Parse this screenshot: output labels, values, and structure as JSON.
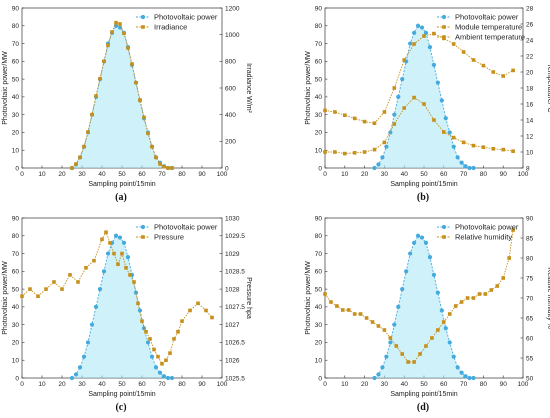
{
  "colors": {
    "pv": "#44aadd",
    "pv_band": "#a8e6f4",
    "other": "#c7901a",
    "axis": "#333333"
  },
  "chart_data": [
    {
      "type": "scatter",
      "panel_label": "(a)",
      "xlabel": "Sampling point/15min",
      "ylabel_left": "Photovoltaic power/MW",
      "ylabel_right": "Irradiance W/m²",
      "xlim": [
        0,
        100
      ],
      "x_ticks": [
        "0",
        "10",
        "20",
        "30",
        "40",
        "50",
        "60",
        "70",
        "80",
        "90",
        "100"
      ],
      "ylim_left": [
        0,
        90
      ],
      "left_ticks": [
        "0",
        "10",
        "20",
        "30",
        "40",
        "50",
        "60",
        "70",
        "80",
        "90"
      ],
      "ylim_right": [
        0,
        1200
      ],
      "right_ticks": [
        "0",
        "200",
        "400",
        "600",
        "800",
        "1000",
        "1200"
      ],
      "legend": [
        "Photovoltaic power",
        "Irradiance"
      ],
      "series": [
        {
          "name": "Photovoltaic power",
          "axis": "left",
          "x": [
            25,
            27,
            29,
            31,
            33,
            35,
            37,
            39,
            41,
            43,
            45,
            47,
            49,
            51,
            53,
            55,
            57,
            59,
            61,
            63,
            65,
            67,
            69,
            71,
            73,
            75
          ],
          "y": [
            0,
            2,
            6,
            12,
            20,
            30,
            40,
            50,
            60,
            70,
            76,
            80,
            79,
            76,
            68,
            58,
            48,
            38,
            28,
            20,
            12,
            6,
            3,
            1,
            0,
            0
          ]
        },
        {
          "name": "Irradiance",
          "axis": "right",
          "x": [
            25,
            27,
            29,
            31,
            33,
            35,
            37,
            39,
            41,
            43,
            45,
            47,
            49,
            51,
            53,
            55,
            57,
            59,
            61,
            63,
            65,
            67,
            69,
            71,
            73,
            75
          ],
          "y": [
            0,
            30,
            80,
            160,
            270,
            400,
            540,
            670,
            800,
            920,
            1020,
            1090,
            1080,
            1010,
            900,
            780,
            640,
            510,
            380,
            260,
            160,
            80,
            30,
            10,
            0,
            0
          ]
        }
      ]
    },
    {
      "type": "line",
      "panel_label": "(b)",
      "xlabel": "Sampling point/15min",
      "ylabel_left": "Photovoltaic power/MW",
      "ylabel_right": "Temperature/°C",
      "xlim": [
        0,
        100
      ],
      "x_ticks": [
        "0",
        "10",
        "20",
        "30",
        "40",
        "50",
        "60",
        "70",
        "80",
        "90",
        "100"
      ],
      "ylim_left": [
        0,
        90
      ],
      "left_ticks": [
        "0",
        "10",
        "20",
        "30",
        "40",
        "50",
        "60",
        "70",
        "80",
        "90"
      ],
      "ylim_right": [
        8,
        28
      ],
      "right_ticks": [
        "8",
        "10",
        "12",
        "14",
        "16",
        "18",
        "20",
        "22",
        "24",
        "26",
        "28"
      ],
      "legend": [
        "Photovoltaic power",
        "Module temperature",
        "Ambient temperature"
      ],
      "series": [
        {
          "name": "Photovoltaic power",
          "axis": "left",
          "x": [
            25,
            27,
            29,
            31,
            33,
            35,
            37,
            39,
            41,
            43,
            45,
            47,
            49,
            51,
            53,
            55,
            57,
            59,
            61,
            63,
            65,
            67,
            69,
            71,
            73,
            75
          ],
          "y": [
            0,
            2,
            6,
            12,
            20,
            30,
            40,
            50,
            60,
            70,
            76,
            80,
            79,
            76,
            68,
            58,
            48,
            38,
            28,
            20,
            12,
            6,
            3,
            1,
            0,
            0
          ]
        },
        {
          "name": "Module temperature",
          "axis": "right",
          "x": [
            0,
            5,
            10,
            15,
            20,
            25,
            30,
            35,
            40,
            45,
            50,
            55,
            60,
            65,
            70,
            75,
            80,
            85,
            90,
            95
          ],
          "y": [
            15.2,
            15,
            14.6,
            14.2,
            13.8,
            13.6,
            15,
            18,
            21.5,
            23.5,
            24.5,
            24.8,
            24.2,
            23.5,
            22.5,
            21.5,
            20.8,
            20,
            19.5,
            20.2
          ]
        },
        {
          "name": "Ambient temperature",
          "axis": "right",
          "x": [
            0,
            5,
            10,
            15,
            20,
            25,
            30,
            35,
            40,
            45,
            50,
            55,
            60,
            65,
            70,
            75,
            80,
            85,
            90,
            95
          ],
          "y": [
            10,
            10,
            9.8,
            9.9,
            10,
            10.3,
            11.2,
            13.5,
            15.5,
            16.8,
            16,
            14,
            12.5,
            11.8,
            11.2,
            10.8,
            10.6,
            10.4,
            10.3,
            10.1
          ]
        }
      ]
    },
    {
      "type": "line",
      "panel_label": "(c)",
      "xlabel": "Sampling point/15min",
      "ylabel_left": "Photovoltaic power/MW",
      "ylabel_right": "Pressure hpa",
      "xlim": [
        0,
        100
      ],
      "x_ticks": [
        "0",
        "10",
        "20",
        "30",
        "40",
        "50",
        "60",
        "70",
        "80",
        "90",
        "100"
      ],
      "ylim_left": [
        0,
        90
      ],
      "left_ticks": [
        "0",
        "10",
        "20",
        "30",
        "40",
        "50",
        "60",
        "70",
        "80",
        "90"
      ],
      "ylim_right": [
        1025.5,
        1030
      ],
      "right_ticks": [
        "1025.5",
        "1026",
        "1026.5",
        "1027",
        "1027.5",
        "1028",
        "1028.5",
        "1029",
        "1029.5",
        "1030"
      ],
      "legend": [
        "Photovoltaic power",
        "Pressure"
      ],
      "series": [
        {
          "name": "Photovoltaic power",
          "axis": "left",
          "x": [
            25,
            27,
            29,
            31,
            33,
            35,
            37,
            39,
            41,
            43,
            45,
            47,
            49,
            51,
            53,
            55,
            57,
            59,
            61,
            63,
            65,
            67,
            69,
            71,
            73,
            75
          ],
          "y": [
            0,
            2,
            6,
            12,
            20,
            30,
            40,
            50,
            60,
            70,
            76,
            80,
            79,
            76,
            68,
            58,
            48,
            38,
            28,
            20,
            12,
            6,
            3,
            1,
            0,
            0
          ]
        },
        {
          "name": "Pressure",
          "axis": "right",
          "x": [
            0,
            4,
            8,
            12,
            16,
            20,
            24,
            28,
            32,
            36,
            40,
            42,
            44,
            46,
            48,
            50,
            52,
            54,
            56,
            58,
            60,
            62,
            64,
            66,
            68,
            70,
            72,
            74,
            76,
            78,
            80,
            84,
            88,
            92,
            95
          ],
          "y": [
            1027.8,
            1028,
            1027.8,
            1028,
            1028.2,
            1028,
            1028.4,
            1028.2,
            1028.6,
            1028.8,
            1029.4,
            1029.6,
            1029.3,
            1029,
            1028.7,
            1029,
            1028.6,
            1028.4,
            1028.2,
            1027.6,
            1027.1,
            1026.8,
            1026.6,
            1026.3,
            1026.1,
            1025.9,
            1026,
            1026.2,
            1026.6,
            1026.8,
            1027.1,
            1027.4,
            1027.6,
            1027.4,
            1027.2
          ]
        }
      ]
    },
    {
      "type": "line",
      "panel_label": "(d)",
      "xlabel": "Sampling point/15min",
      "ylabel_left": "Photovoltaic power/MW",
      "ylabel_right": "Relative humidity %",
      "xlim": [
        0,
        100
      ],
      "x_ticks": [
        "0",
        "10",
        "20",
        "30",
        "40",
        "50",
        "60",
        "70",
        "80",
        "90",
        "100"
      ],
      "ylim_left": [
        0,
        90
      ],
      "left_ticks": [
        "0",
        "10",
        "20",
        "30",
        "40",
        "50",
        "60",
        "70",
        "80",
        "90"
      ],
      "ylim_right": [
        50,
        90
      ],
      "right_ticks": [
        "50",
        "55",
        "60",
        "65",
        "70",
        "75",
        "80",
        "85",
        "90"
      ],
      "legend": [
        "Photovoltaic power",
        "Relative humidity"
      ],
      "series": [
        {
          "name": "Photovoltaic power",
          "axis": "left",
          "x": [
            25,
            27,
            29,
            31,
            33,
            35,
            37,
            39,
            41,
            43,
            45,
            47,
            49,
            51,
            53,
            55,
            57,
            59,
            61,
            63,
            65,
            67,
            69,
            71,
            73,
            75
          ],
          "y": [
            0,
            2,
            6,
            12,
            20,
            30,
            40,
            50,
            60,
            70,
            76,
            80,
            79,
            76,
            68,
            58,
            48,
            38,
            28,
            20,
            12,
            6,
            3,
            1,
            0,
            0
          ]
        },
        {
          "name": "Relative humidity",
          "axis": "right",
          "x": [
            0,
            3,
            6,
            9,
            12,
            15,
            18,
            21,
            24,
            27,
            30,
            33,
            36,
            39,
            42,
            45,
            48,
            51,
            54,
            57,
            60,
            63,
            66,
            69,
            72,
            75,
            78,
            81,
            84,
            87,
            90,
            93,
            95
          ],
          "y": [
            71,
            69,
            68,
            67,
            67,
            66,
            66,
            65,
            64,
            63,
            62,
            60,
            58,
            56,
            54,
            54,
            56,
            58,
            60,
            62,
            64,
            66,
            68,
            69,
            70,
            70,
            71,
            71,
            72,
            73,
            75,
            80,
            87
          ]
        }
      ]
    }
  ]
}
